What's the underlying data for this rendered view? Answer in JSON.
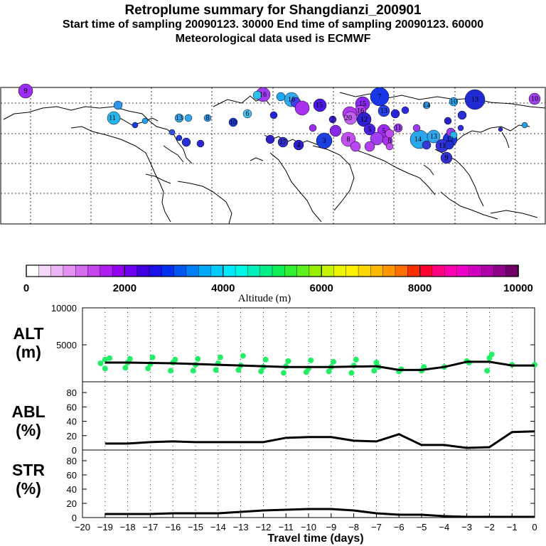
{
  "header": {
    "title": "Retroplume summary for Shangdianzi_200901",
    "sampling_line": "Start time of sampling 20090123. 30000     End time of sampling 20090123. 60000",
    "met_line": "Meteorological data used is ECMWF"
  },
  "colorbar": {
    "title": "Altitude (m)",
    "ticks": [
      "0",
      "2000",
      "4000",
      "6000",
      "8000",
      "10000"
    ],
    "colors": [
      "#ffffff",
      "#f5d8f8",
      "#ecb6f6",
      "#e391f3",
      "#d66cf0",
      "#c544ee",
      "#ae1ef0",
      "#9200f2",
      "#6e00f0",
      "#3f00e0",
      "#1a10e8",
      "#0030f0",
      "#0058f4",
      "#0080f6",
      "#00a8f8",
      "#00ccfa",
      "#00e8fa",
      "#00f6e4",
      "#00f0b8",
      "#00ee8a",
      "#10ee58",
      "#30f032",
      "#60f020",
      "#98f000",
      "#c8f400",
      "#eef400",
      "#fff000",
      "#ffd800",
      "#ffb800",
      "#ff9800",
      "#ff7000",
      "#ff3000",
      "#ff0030",
      "#ff0080",
      "#ff00b0",
      "#f000c8",
      "#d000c0",
      "#b000a8",
      "#900088",
      "#700068"
    ]
  },
  "plume_labels": [
    "9",
    "16",
    "16",
    "7",
    "13",
    "10",
    "10",
    "15",
    "15",
    "16",
    "13",
    "11",
    "13",
    "8",
    "10",
    "20",
    "12",
    "5",
    "5",
    "11",
    "8",
    "3",
    "14",
    "13",
    "6",
    "12",
    "11",
    "9",
    "17",
    "4",
    "2",
    "14",
    "6"
  ],
  "panels": {
    "alt": {
      "name_line1": "ALT",
      "name_line2": "(m)"
    },
    "abl": {
      "name_line1": "ABL",
      "name_line2": "(%)"
    },
    "str": {
      "name_line1": "STR",
      "name_line2": "(%)"
    }
  },
  "xaxis_label": "Travel time (days)",
  "colors": {
    "scatter": "#22ee66",
    "line": "#000000"
  },
  "chart_data": [
    {
      "type": "line",
      "title": "ALT (m)",
      "x": [
        -19,
        -18,
        -17,
        -16,
        -15,
        -14,
        -13,
        -12,
        -11,
        -10,
        -9,
        -8,
        -7,
        -6,
        -5,
        -4,
        -3,
        -2,
        -1,
        0
      ],
      "y": [
        2600,
        2600,
        2550,
        2500,
        2400,
        2300,
        2200,
        2100,
        2000,
        2000,
        2000,
        2050,
        2100,
        1600,
        1600,
        2000,
        2700,
        2700,
        2200,
        2200
      ],
      "scatter_x": [
        -19.2,
        -19,
        -19,
        -18.8,
        -18,
        -17.9,
        -18.1,
        -17,
        -16.9,
        -17.1,
        -16,
        -15.9,
        -16.1,
        -15,
        -14.9,
        -15.1,
        -14,
        -13.9,
        -14.1,
        -13,
        -12.9,
        -13.1,
        -12,
        -11.9,
        -12.1,
        -11,
        -10.9,
        -11.1,
        -10,
        -9.9,
        -10.1,
        -9,
        -8.9,
        -9.1,
        -8,
        -7.9,
        -8.1,
        -7,
        -6.9,
        -7.1,
        -6,
        -5.9,
        -5,
        -4.9,
        -4,
        -3,
        -2.9,
        -2,
        -1.9,
        -2.1,
        -1,
        0
      ],
      "scatter_y": [
        2500,
        3000,
        1800,
        3200,
        2600,
        3100,
        1900,
        2400,
        3300,
        1800,
        2600,
        3000,
        1500,
        2300,
        3100,
        1500,
        2500,
        3300,
        1600,
        2200,
        3500,
        1600,
        2000,
        3000,
        1400,
        2100,
        2800,
        1200,
        1800,
        2900,
        1300,
        2000,
        2700,
        1400,
        2200,
        3000,
        1200,
        2600,
        2000,
        1500,
        1400,
        1700,
        1500,
        2000,
        2000,
        2800,
        2600,
        3200,
        3700,
        1500,
        2300,
        2300
      ],
      "xlim": [
        -20,
        0
      ],
      "ylim": [
        0,
        10000
      ],
      "yticks": [
        "5000",
        "10000"
      ]
    },
    {
      "type": "line",
      "title": "ABL (%)",
      "x": [
        -19,
        -18,
        -17,
        -16,
        -15,
        -14,
        -13,
        -12,
        -11,
        -10,
        -9,
        -8,
        -7,
        -6,
        -5,
        -4,
        -3,
        -2,
        -1,
        0
      ],
      "y": [
        9,
        9,
        11,
        12,
        11,
        11,
        11,
        11,
        17,
        18,
        18,
        13,
        12,
        22,
        7,
        7,
        3,
        4,
        25,
        26
      ],
      "xlim": [
        -20,
        0
      ],
      "ylim": [
        0,
        95
      ],
      "yticks": [
        "0",
        "20",
        "40",
        "60",
        "80"
      ]
    },
    {
      "type": "line",
      "title": "STR (%)",
      "x": [
        -19,
        -18,
        -17,
        -16,
        -15,
        -14,
        -13,
        -12,
        -11,
        -10,
        -9,
        -8,
        -7,
        -6,
        -5,
        -4,
        -3,
        -2,
        -1,
        0
      ],
      "y": [
        5,
        5,
        5,
        6,
        6,
        6,
        8,
        10,
        11,
        12,
        12,
        10,
        6,
        4,
        4,
        2,
        1,
        1,
        1,
        1
      ],
      "xlim": [
        -20,
        0
      ],
      "ylim": [
        0,
        95
      ],
      "yticks": [
        "0",
        "20",
        "40",
        "60",
        "80"
      ]
    }
  ],
  "x_ticks": [
    "−20",
    "−19",
    "−18",
    "−17",
    "−16",
    "−15",
    "−14",
    "−13",
    "−12",
    "−11",
    "−10",
    "−9",
    "−8",
    "−7",
    "−6",
    "−5",
    "−4",
    "−3",
    "−2",
    "−1",
    "0"
  ]
}
